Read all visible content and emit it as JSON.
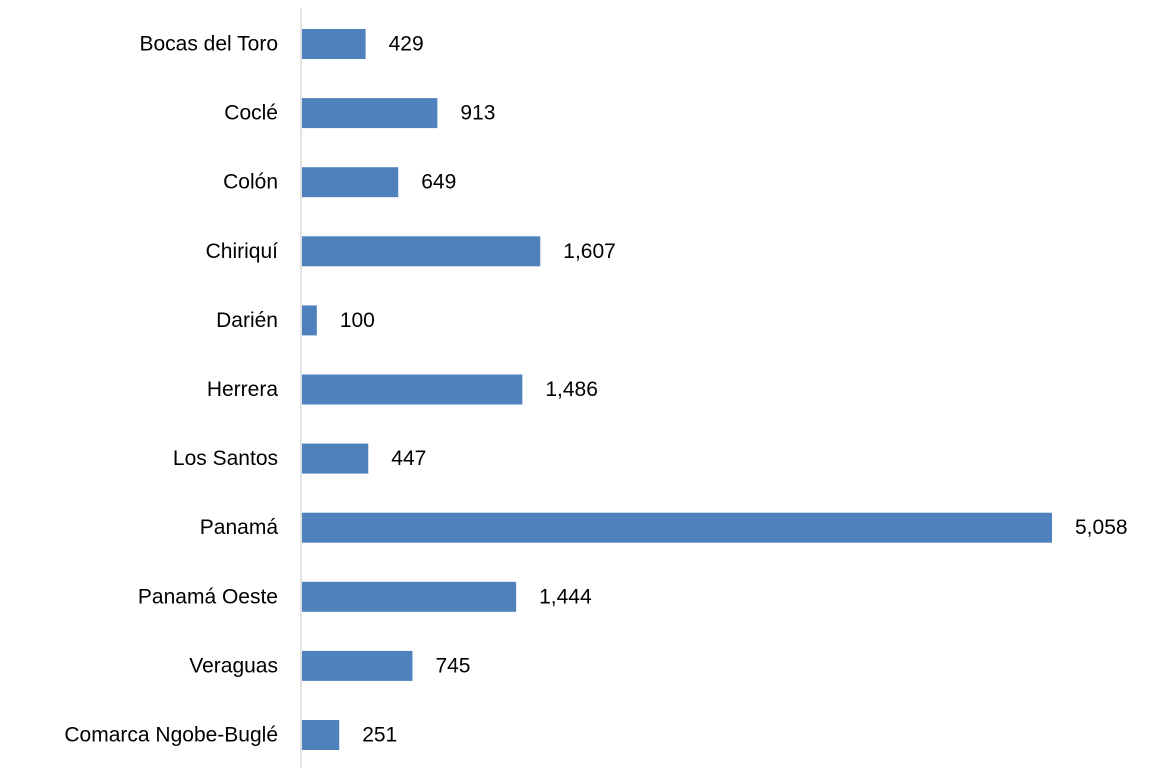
{
  "chart_data": {
    "type": "bar",
    "orientation": "horizontal",
    "categories": [
      "Bocas del Toro",
      "Coclé",
      "Colón",
      "Chiriquí",
      "Darién",
      "Herrera",
      "Los Santos",
      "Panamá",
      "Panamá Oeste",
      "Veraguas",
      "Comarca Ngobe-Buglé"
    ],
    "values": [
      429,
      913,
      649,
      1607,
      100,
      1486,
      447,
      5058,
      1444,
      745,
      251
    ],
    "value_labels": [
      "429",
      "913",
      "649",
      "1,607",
      "100",
      "1,486",
      "447",
      "5,058",
      "1,444",
      "745",
      "251"
    ],
    "title": "",
    "xlabel": "",
    "ylabel": "",
    "xlim": [
      0,
      5058
    ],
    "grid": false,
    "legend": "none",
    "bar_color": "#4f81bd",
    "axis_color": "#d9d9d9"
  }
}
